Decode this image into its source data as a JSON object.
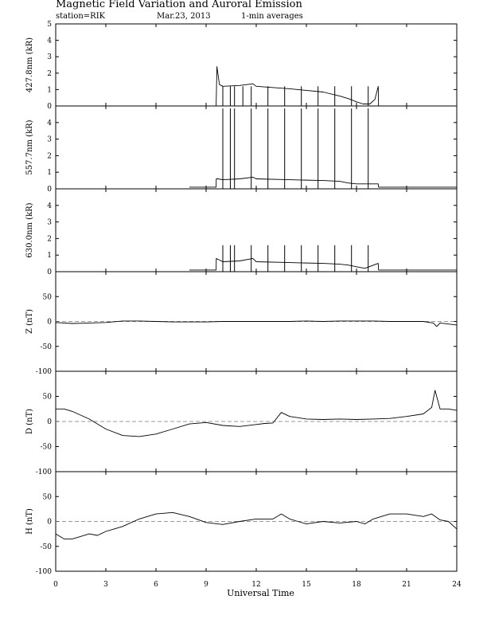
{
  "header": {
    "title": "Magnetic Field Variation and Auroral Emission",
    "station": "station=RIK",
    "date": "Mar.23, 2013",
    "averaging": "1-min averages"
  },
  "chart_data": {
    "type": "line",
    "x_axis": {
      "label": "Universal Time",
      "range": [
        0,
        24
      ],
      "ticks": [
        0,
        3,
        6,
        9,
        12,
        15,
        18,
        21,
        24
      ],
      "tick_labels": [
        "0",
        "3",
        "6",
        "9",
        "12",
        "15",
        "18",
        "21",
        "24"
      ]
    },
    "panels": [
      {
        "ylabel": "427.8nm (kR)",
        "ylim": [
          0,
          5
        ],
        "yticks": [
          0,
          1,
          2,
          3,
          4,
          5
        ],
        "ytick_labels": [
          "0",
          "1",
          "2",
          "3",
          "4",
          "5"
        ],
        "zero_line": false,
        "series": [
          {
            "x": [
              0,
              8,
              9.6,
              9.65,
              9.8,
              10,
              11,
              11.8,
              12,
              14,
              16,
              17,
              17.5,
              18,
              18.4,
              18.8,
              19.1,
              19.3,
              19.32,
              24
            ],
            "y": [
              0,
              0,
              0,
              2.4,
              1.3,
              1.2,
              1.25,
              1.35,
              1.2,
              1.05,
              0.85,
              0.6,
              0.45,
              0.25,
              0.12,
              0.12,
              0.4,
              1.2,
              0,
              0
            ]
          }
        ],
        "spikes": {
          "x": [
            10.0,
            10.45,
            10.7,
            11.2,
            11.7,
            12.7,
            13.7,
            14.7,
            15.7,
            16.7,
            17.7,
            18.7
          ],
          "top": 1.2
        }
      },
      {
        "ylabel": "557.7nm (kR)",
        "ylim": [
          0,
          5
        ],
        "yticks": [
          0,
          1,
          2,
          3,
          4,
          5
        ],
        "ytick_labels": [
          "0",
          "1",
          "2",
          "3",
          "4",
          ""
        ],
        "zero_line": false,
        "series": [
          {
            "x": [
              8,
              9.6,
              9.61,
              9.7,
              10,
              11,
              11.8,
              12,
              14,
              16,
              17,
              17.5,
              18,
              18.5,
              19,
              19.3,
              19.32,
              24
            ],
            "y": [
              0.1,
              0.1,
              0.6,
              0.6,
              0.55,
              0.6,
              0.7,
              0.6,
              0.55,
              0.5,
              0.45,
              0.35,
              0.3,
              0.3,
              0.3,
              0.3,
              0.1,
              0.1
            ]
          }
        ],
        "spikes": {
          "x": [
            10.0,
            10.45,
            10.7,
            11.7,
            12.7,
            13.7,
            14.7,
            15.7,
            16.7,
            17.7,
            18.7
          ],
          "top": 4.85
        }
      },
      {
        "ylabel": "630.0nm (kR)",
        "ylim": [
          0,
          5
        ],
        "yticks": [
          0,
          1,
          2,
          3,
          4,
          5
        ],
        "ytick_labels": [
          "0",
          "1",
          "2",
          "3",
          "4",
          ""
        ],
        "zero_line": false,
        "series": [
          {
            "x": [
              8,
              9.6,
              9.61,
              9.8,
              10,
              11,
              11.8,
              12,
              14,
              16,
              17,
              17.5,
              18,
              18.5,
              19.3,
              19.32,
              24
            ],
            "y": [
              0.1,
              0.1,
              0.8,
              0.7,
              0.6,
              0.65,
              0.8,
              0.6,
              0.55,
              0.5,
              0.45,
              0.4,
              0.3,
              0.2,
              0.5,
              0.1,
              0.1
            ]
          }
        ],
        "spikes": {
          "x": [
            10.0,
            10.45,
            10.7,
            11.7,
            12.7,
            13.7,
            14.7,
            15.7,
            16.7,
            17.7,
            18.7
          ],
          "top": 1.6
        }
      },
      {
        "ylabel": "Z (nT)",
        "ylim": [
          -100,
          100
        ],
        "yticks": [
          -100,
          -50,
          0,
          50
        ],
        "ytick_labels": [
          "-100",
          "-50",
          "0",
          "50"
        ],
        "zero_line": true,
        "series": [
          {
            "x": [
              0,
              1,
              2,
              3,
              4,
              5,
              6,
              7,
              8,
              9,
              10,
              11,
              12,
              13,
              14,
              15,
              16,
              17,
              18,
              19,
              20,
              21,
              22,
              22.6,
              22.8,
              23,
              24
            ],
            "y": [
              -2,
              -4,
              -3,
              -2,
              1,
              1,
              0,
              -1,
              -1,
              -1,
              0,
              0,
              0,
              0,
              0,
              1,
              0,
              1,
              1,
              1,
              0,
              0,
              0,
              -3,
              -10,
              -3,
              -7
            ]
          }
        ]
      },
      {
        "ylabel": "D (nT)",
        "ylim": [
          -100,
          100
        ],
        "yticks": [
          -100,
          -50,
          0,
          50
        ],
        "ytick_labels": [
          "-100",
          "-50",
          "0",
          "50"
        ],
        "zero_line": true,
        "series": [
          {
            "x": [
              0,
              0.5,
              1,
              2,
              3,
              4,
              5,
              6,
              7,
              8,
              9,
              10,
              11,
              12,
              12.5,
              13,
              13.5,
              14,
              15,
              16,
              17,
              18,
              19,
              20,
              21,
              22,
              22.5,
              22.7,
              23,
              23.5,
              24
            ],
            "y": [
              25,
              25,
              20,
              5,
              -15,
              -28,
              -30,
              -25,
              -15,
              -5,
              -2,
              -8,
              -10,
              -6,
              -4,
              -3,
              18,
              10,
              5,
              4,
              5,
              4,
              5,
              6,
              10,
              15,
              28,
              62,
              25,
              25,
              22
            ]
          }
        ]
      },
      {
        "ylabel": "H (nT)",
        "ylim": [
          -100,
          100
        ],
        "yticks": [
          -100,
          -50,
          0,
          50
        ],
        "ytick_labels": [
          "-100",
          "-50",
          "0",
          "50"
        ],
        "zero_line": true,
        "series": [
          {
            "x": [
              0,
              0.5,
              1,
              1.5,
              2,
              2.5,
              3,
              3.5,
              4,
              5,
              6,
              7,
              8,
              9,
              10,
              11,
              12,
              13,
              13.5,
              14,
              14.5,
              15,
              16,
              17,
              18,
              18.5,
              19,
              20,
              21,
              22,
              22.5,
              23,
              23.5,
              24
            ],
            "y": [
              -25,
              -35,
              -35,
              -30,
              -25,
              -28,
              -20,
              -15,
              -10,
              5,
              15,
              18,
              10,
              -2,
              -6,
              0,
              5,
              5,
              15,
              5,
              0,
              -5,
              0,
              -3,
              0,
              -5,
              5,
              15,
              15,
              10,
              15,
              3,
              0,
              -15
            ]
          }
        ]
      }
    ]
  }
}
